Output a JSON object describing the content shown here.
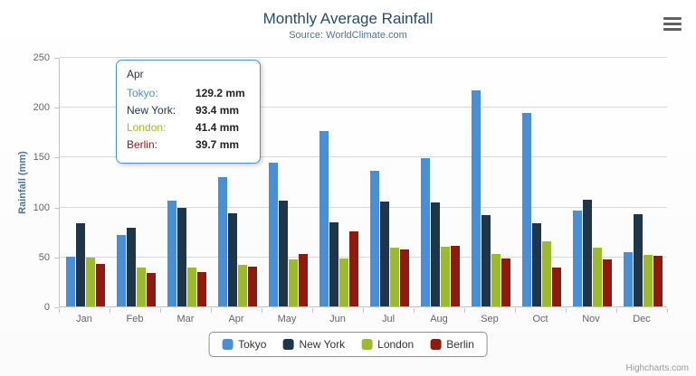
{
  "header": {
    "title": "Monthly Average Rainfall",
    "subtitle": "Source: WorldClimate.com"
  },
  "context_menu": {
    "icon": "hamburger"
  },
  "chart_data": {
    "type": "bar",
    "title": "Monthly Average Rainfall",
    "subtitle": "Source: WorldClimate.com",
    "xlabel": "",
    "ylabel": "Rainfall (mm)",
    "ylim": [
      0,
      250
    ],
    "yticks": [
      0,
      50,
      100,
      150,
      200,
      250
    ],
    "grid": true,
    "legend_position": "bottom-center",
    "unit": "mm",
    "categories": [
      "Jan",
      "Feb",
      "Mar",
      "Apr",
      "May",
      "Jun",
      "Jul",
      "Aug",
      "Sep",
      "Oct",
      "Nov",
      "Dec"
    ],
    "series": [
      {
        "name": "Tokyo",
        "color": "#4a8fd3",
        "values": [
          49.9,
          71.5,
          106.4,
          129.2,
          144.0,
          176.0,
          135.6,
          148.5,
          216.4,
          194.1,
          95.6,
          54.4
        ]
      },
      {
        "name": "New York",
        "color": "#1f3648",
        "values": [
          83.6,
          78.8,
          98.5,
          93.4,
          106.0,
          84.5,
          105.0,
          104.3,
          91.2,
          83.5,
          106.6,
          92.3
        ]
      },
      {
        "name": "London",
        "color": "#9bbb2d",
        "values": [
          48.9,
          38.8,
          39.3,
          41.4,
          47.0,
          48.3,
          59.0,
          59.6,
          52.4,
          65.2,
          59.3,
          51.2
        ]
      },
      {
        "name": "Berlin",
        "color": "#8e1b10",
        "values": [
          42.4,
          33.2,
          34.5,
          39.7,
          52.6,
          75.5,
          57.4,
          60.4,
          47.6,
          39.1,
          46.8,
          51.1
        ]
      }
    ]
  },
  "tooltip": {
    "header": "Apr",
    "rows": [
      {
        "label": "Tokyo:",
        "value": "129.2 mm",
        "color": "#4a8fd3"
      },
      {
        "label": "New York:",
        "value": "93.4 mm",
        "color": "#1f3648"
      },
      {
        "label": "London:",
        "value": "41.4 mm",
        "color": "#9bbb2d"
      },
      {
        "label": "Berlin:",
        "value": "39.7 mm",
        "color": "#8e1b10"
      }
    ]
  },
  "credits": {
    "label": "Highcharts.com"
  }
}
